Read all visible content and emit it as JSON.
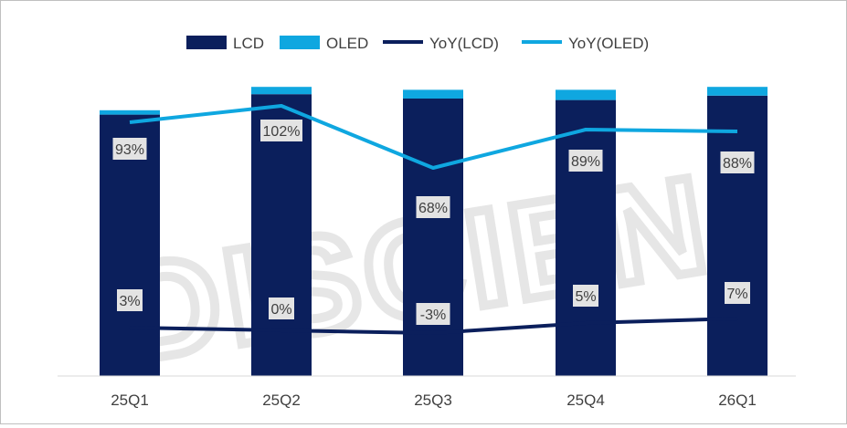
{
  "chart_data": {
    "type": "bar",
    "stacked": true,
    "categories": [
      "25Q1",
      "25Q2",
      "25Q3",
      "25Q4",
      "26Q1"
    ],
    "series": [
      {
        "name": "LCD",
        "type": "bar",
        "color": "#0b1f5c",
        "values": [
          89.5,
          96.5,
          95.0,
          94.5,
          96.0
        ]
      },
      {
        "name": "OLED",
        "type": "bar",
        "color": "#0fa7e0",
        "values": [
          1.5,
          2.5,
          3.0,
          3.5,
          3.0
        ]
      },
      {
        "name": "YoY(LCD)",
        "type": "line",
        "color": "#0b1f5c",
        "values": [
          3,
          0,
          -3,
          5,
          7
        ],
        "labels": [
          "3%",
          "0%",
          "-3%",
          "5%",
          "7%"
        ]
      },
      {
        "name": "YoY(OLED)",
        "type": "line",
        "color": "#0fa7e0",
        "values": [
          93,
          102,
          68,
          89,
          88
        ],
        "labels": [
          "93%",
          "102%",
          "68%",
          "89%",
          "88%"
        ]
      }
    ],
    "legend": [
      "LCD",
      "OLED",
      "YoY(LCD)",
      "YoY(OLED)"
    ],
    "legend_position": "top",
    "grid": false,
    "title": "",
    "xlabel": "",
    "ylabel": ""
  },
  "watermark": "DISCIEN"
}
